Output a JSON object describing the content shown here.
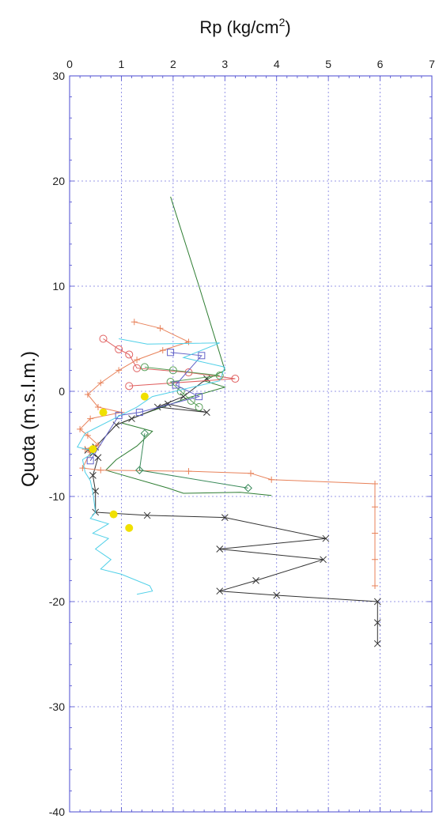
{
  "chart_data": {
    "type": "line",
    "title": "Rp (kg/cm",
    "title_sup": "2",
    "title_end": ")",
    "xlabel": "Rp (kg/cm2)",
    "ylabel": "Quota (m.s.l.m.)",
    "xlim": [
      0,
      7
    ],
    "ylim": [
      -40,
      30
    ],
    "x_ticks": [
      "0",
      "1",
      "2",
      "3",
      "4",
      "5",
      "6",
      "7"
    ],
    "y_ticks": [
      "30",
      "20",
      "10",
      "0",
      "-10",
      "-20",
      "-30",
      "-40"
    ],
    "grid": true,
    "colors": {
      "grid": "#7a7ae0",
      "frame": "#4a4ad0"
    },
    "series": [
      {
        "color": "#2e7d32",
        "marker": "none",
        "points": [
          [
            1.95,
            18.5
          ],
          [
            2.5,
            10
          ],
          [
            3.0,
            2.0
          ],
          [
            2.6,
            1.0
          ],
          [
            3.0,
            0.4
          ],
          [
            2.3,
            -0.6
          ],
          [
            1.4,
            -2.2
          ],
          [
            1.0,
            -3.0
          ],
          [
            1.6,
            -3.8
          ],
          [
            1.3,
            -5.2
          ],
          [
            0.9,
            -6.5
          ],
          [
            0.7,
            -7.5
          ],
          [
            1.9,
            -9.2
          ],
          [
            2.2,
            -9.7
          ],
          [
            3.3,
            -9.6
          ],
          [
            3.9,
            -9.9
          ]
        ]
      },
      {
        "color": "#333333",
        "marker": "x",
        "points": [
          [
            2.65,
            1.2
          ],
          [
            2.2,
            -0.5
          ],
          [
            1.7,
            -1.5
          ],
          [
            2.65,
            -2.0
          ],
          [
            1.9,
            -1.2
          ],
          [
            1.2,
            -2.6
          ],
          [
            0.9,
            -3.2
          ],
          [
            0.5,
            -5.3
          ],
          [
            0.35,
            -5.6
          ],
          [
            0.45,
            -5.9
          ],
          [
            0.55,
            -6.3
          ],
          [
            0.45,
            -8.0
          ],
          [
            0.5,
            -9.5
          ],
          [
            0.5,
            -11.5
          ],
          [
            1.5,
            -11.8
          ],
          [
            3.0,
            -12.0
          ],
          [
            4.95,
            -14.0
          ],
          [
            2.9,
            -15.0
          ],
          [
            4.9,
            -16.0
          ],
          [
            3.6,
            -18.0
          ],
          [
            2.9,
            -19.0
          ],
          [
            4.0,
            -19.4
          ],
          [
            5.95,
            -20.0
          ],
          [
            5.95,
            -22.0
          ],
          [
            5.95,
            -24.0
          ]
        ]
      },
      {
        "color": "#e8825a",
        "marker": "plus",
        "points": [
          [
            1.25,
            6.6
          ],
          [
            1.75,
            6.0
          ],
          [
            2.3,
            4.7
          ],
          [
            1.8,
            3.9
          ],
          [
            1.3,
            3.0
          ],
          [
            0.95,
            2.0
          ],
          [
            0.6,
            0.8
          ],
          [
            0.35,
            -0.3
          ],
          [
            0.55,
            -1.5
          ],
          [
            1.0,
            -2.0
          ],
          [
            0.4,
            -2.6
          ],
          [
            0.2,
            -3.6
          ],
          [
            0.35,
            -4.2
          ],
          [
            0.55,
            -5.1
          ],
          [
            0.3,
            -5.5
          ],
          [
            0.4,
            -5.8
          ],
          [
            0.25,
            -7.3
          ],
          [
            0.6,
            -7.5
          ],
          [
            2.3,
            -7.6
          ],
          [
            3.5,
            -7.8
          ],
          [
            3.9,
            -8.4
          ],
          [
            5.9,
            -8.8
          ],
          [
            5.9,
            -11.0
          ],
          [
            5.9,
            -13.5
          ],
          [
            5.9,
            -16.0
          ],
          [
            5.9,
            -18.5
          ]
        ]
      },
      {
        "color": "#e06060",
        "marker": "circle",
        "points": [
          [
            0.65,
            5.0
          ],
          [
            0.95,
            4.0
          ],
          [
            1.15,
            3.5
          ],
          [
            1.3,
            2.2
          ],
          [
            2.3,
            1.8
          ],
          [
            3.2,
            1.2
          ],
          [
            1.15,
            0.5
          ]
        ]
      },
      {
        "color": "#5aa05a",
        "marker": "circle",
        "points": [
          [
            1.45,
            2.3
          ],
          [
            2.0,
            2.0
          ],
          [
            2.9,
            1.5
          ],
          [
            1.95,
            0.9
          ],
          [
            2.15,
            0.0
          ],
          [
            2.35,
            -0.9
          ],
          [
            2.5,
            -1.5
          ]
        ]
      },
      {
        "color": "#6464c8",
        "marker": "square",
        "points": [
          [
            1.95,
            3.7
          ],
          [
            2.55,
            3.4
          ],
          [
            2.05,
            0.6
          ],
          [
            2.5,
            -0.5
          ],
          [
            1.35,
            -2.0
          ],
          [
            0.95,
            -2.3
          ],
          [
            0.4,
            -6.6
          ]
        ]
      },
      {
        "color": "#3a8a5a",
        "marker": "diamond",
        "points": [
          [
            1.45,
            -4.0
          ],
          [
            1.35,
            -7.5
          ],
          [
            3.45,
            -9.2
          ]
        ]
      },
      {
        "color": "#50d0e8",
        "marker": "none",
        "points": [
          [
            0.95,
            5.0
          ],
          [
            1.5,
            4.5
          ],
          [
            2.9,
            4.6
          ],
          [
            2.2,
            3.2
          ],
          [
            3.0,
            2.3
          ],
          [
            2.9,
            1.0
          ],
          [
            1.6,
            -0.5
          ],
          [
            1.3,
            -1.5
          ],
          [
            0.5,
            -3.5
          ],
          [
            0.3,
            -4.0
          ],
          [
            0.15,
            -5.3
          ],
          [
            0.5,
            -5.7
          ],
          [
            0.25,
            -6.5
          ],
          [
            0.3,
            -7.7
          ],
          [
            0.4,
            -8.5
          ],
          [
            0.45,
            -9.6
          ],
          [
            0.5,
            -11.5
          ],
          [
            0.4,
            -12.1
          ],
          [
            0.75,
            -12.6
          ],
          [
            0.45,
            -13.5
          ],
          [
            0.75,
            -14.0
          ],
          [
            0.5,
            -15.0
          ],
          [
            0.8,
            -16.0
          ],
          [
            0.6,
            -16.9
          ],
          [
            1.0,
            -17.4
          ],
          [
            1.55,
            -18.5
          ],
          [
            1.6,
            -19.0
          ],
          [
            1.3,
            -19.3
          ]
        ]
      },
      {
        "color": "#f0e000",
        "marker": "dot",
        "points": [
          [
            1.45,
            -0.5
          ],
          [
            0.65,
            -2.0
          ],
          [
            0.45,
            -5.5
          ],
          [
            0.85,
            -11.7
          ],
          [
            1.15,
            -13.0
          ]
        ]
      }
    ]
  }
}
